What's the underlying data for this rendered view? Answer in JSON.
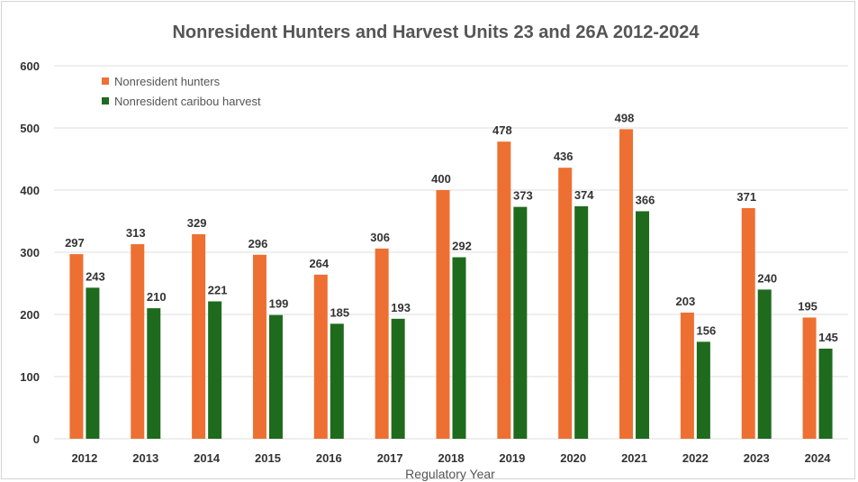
{
  "chart_data": {
    "type": "bar",
    "title": "Nonresident Hunters and Harvest Units 23 and 26A 2012-2024",
    "xlabel": "Regulatory Year",
    "ylabel": "",
    "ylim": [
      0,
      600
    ],
    "yticks": [
      0,
      100,
      200,
      300,
      400,
      500,
      600
    ],
    "grid": true,
    "legend_position": "top-left",
    "categories": [
      "2012",
      "2013",
      "2014",
      "2015",
      "2016",
      "2017",
      "2018",
      "2019",
      "2020",
      "2021",
      "2022",
      "2023",
      "2024"
    ],
    "series": [
      {
        "name": "Nonresident hunters",
        "color": "#ed7032",
        "values": [
          297,
          313,
          329,
          296,
          264,
          306,
          400,
          478,
          436,
          498,
          203,
          371,
          195
        ]
      },
      {
        "name": "Nonresident caribou harvest",
        "color": "#1e6b1e",
        "values": [
          243,
          210,
          221,
          199,
          185,
          193,
          292,
          373,
          374,
          366,
          156,
          240,
          145
        ]
      }
    ]
  }
}
